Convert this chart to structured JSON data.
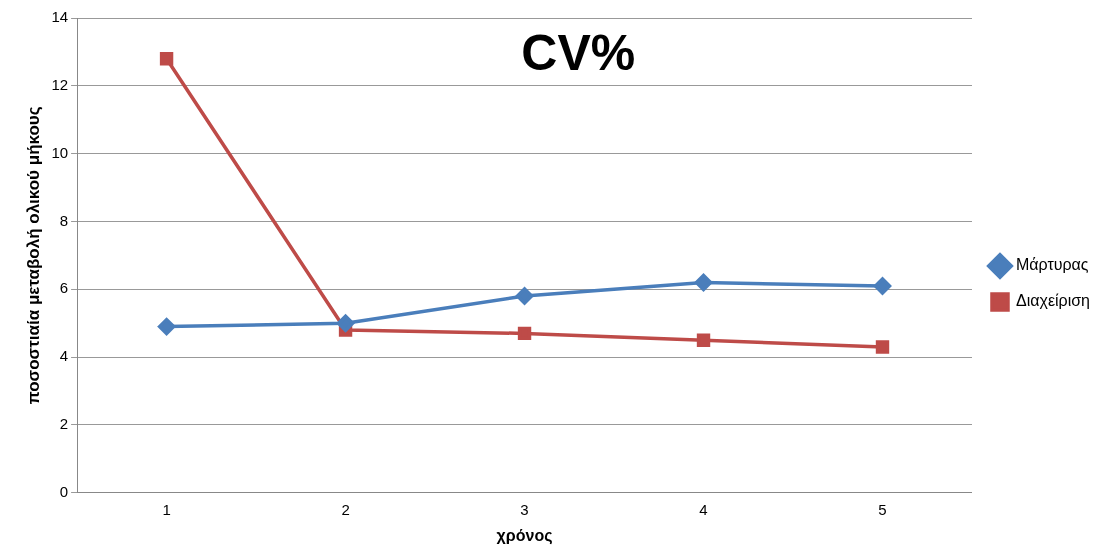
{
  "chart_data": {
    "type": "line",
    "title": "CV%",
    "xlabel": "χρόνος",
    "ylabel": "ποσοστιαία μεταβολή ολικού μήκους",
    "categories": [
      "1",
      "2",
      "3",
      "4",
      "5"
    ],
    "series": [
      {
        "name": "Μάρτυρας",
        "color": "#4a7ebb",
        "marker": "diamond",
        "values": [
          4.9,
          5.0,
          5.8,
          6.2,
          6.1
        ]
      },
      {
        "name": "Διαχείριση",
        "color": "#be4b48",
        "marker": "square",
        "values": [
          12.8,
          4.8,
          4.7,
          4.5,
          4.3
        ]
      }
    ],
    "ylim": [
      0,
      14
    ],
    "yticks": [
      0,
      2,
      4,
      6,
      8,
      10,
      12,
      14
    ],
    "grid": "y",
    "legend": "right",
    "line_style": "solid"
  }
}
